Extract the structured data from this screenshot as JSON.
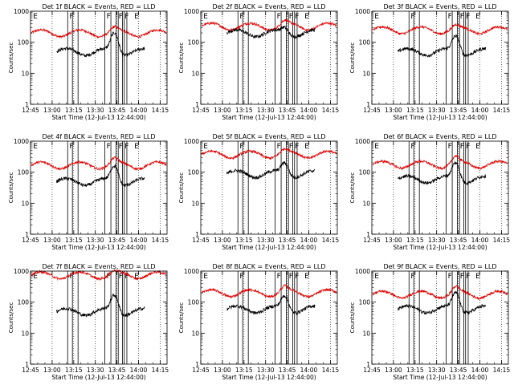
{
  "figure": {
    "colors": {
      "events": "#000000",
      "lld": "#e00000",
      "axes": "#000000"
    }
  },
  "chart_data": {
    "type": "line",
    "y_scale": "log",
    "ylim": [
      1,
      1000
    ],
    "ylabel": "Counts/sec",
    "xlabel": "Start Time (12-Jul-13 12:44:00)",
    "x_tick_labels": [
      "12:45",
      "13:00",
      "13:15",
      "13:30",
      "13:45",
      "14:00",
      "14:15"
    ],
    "x_tick_minutes": [
      12.75,
      13.0,
      13.25,
      13.5,
      13.75,
      14.0,
      14.25
    ],
    "xlim": [
      12.75,
      14.33
    ],
    "y_tick_labels": [
      "1",
      "10",
      "100",
      "1000"
    ],
    "y_tick_values": [
      1,
      10,
      100,
      1000
    ],
    "dotted_lines_hours": [
      13.0,
      13.25,
      13.5,
      13.75,
      14.0,
      14.25
    ],
    "interval_lines_hours": [
      13.18,
      13.235,
      13.3,
      13.61,
      13.68,
      13.74,
      13.765,
      13.815,
      13.835,
      13.865
    ],
    "interval_labels": [
      {
        "text": "E",
        "hour": 12.78
      },
      {
        "text": "F",
        "hour": 13.2
      },
      {
        "text": "F",
        "hour": 13.63
      },
      {
        "text": "F",
        "hour": 13.77
      },
      {
        "text": "F",
        "hour": 13.84
      },
      {
        "text": "E",
        "hour": 13.95
      }
    ],
    "panels": [
      {
        "title": "Det 1f BLACK = Events, RED = LLD",
        "events_base": 50,
        "lld_base": 200,
        "peak_hour": 13.72,
        "events_peak": 200,
        "lld_peak": 280
      },
      {
        "title": "Det 2f BLACK = Events, RED = LLD",
        "events_base": 200,
        "lld_base": 330,
        "peak_hour": 13.72,
        "events_peak": 300,
        "lld_peak": 450
      },
      {
        "title": "Det 3f BLACK = Events, RED = LLD",
        "events_base": 50,
        "lld_base": 250,
        "peak_hour": 13.72,
        "events_peak": 160,
        "lld_peak": 320
      },
      {
        "title": "Det 4f BLACK = Events, RED = LLD",
        "events_base": 50,
        "lld_base": 170,
        "peak_hour": 13.72,
        "events_peak": 160,
        "lld_peak": 260
      },
      {
        "title": "Det 5f BLACK = Events, RED = LLD",
        "events_base": 90,
        "lld_base": 380,
        "peak_hour": 13.72,
        "events_peak": 200,
        "lld_peak": 500
      },
      {
        "title": "Det 6f BLACK = Events, RED = LLD",
        "events_base": 60,
        "lld_base": 180,
        "peak_hour": 13.72,
        "events_peak": 200,
        "lld_peak": 300
      },
      {
        "title": "Det 7f BLACK = Events, RED = LLD",
        "events_base": 50,
        "lld_base": 750,
        "peak_hour": 13.72,
        "events_peak": 170,
        "lld_peak": 900
      },
      {
        "title": "Det 8f BLACK = Events, RED = LLD",
        "events_base": 60,
        "lld_base": 200,
        "peak_hour": 13.72,
        "events_peak": 160,
        "lld_peak": 300
      },
      {
        "title": "Det 9f BLACK = Events, RED = LLD",
        "events_base": 60,
        "lld_base": 180,
        "peak_hour": 13.72,
        "events_peak": 200,
        "lld_peak": 290
      }
    ]
  }
}
